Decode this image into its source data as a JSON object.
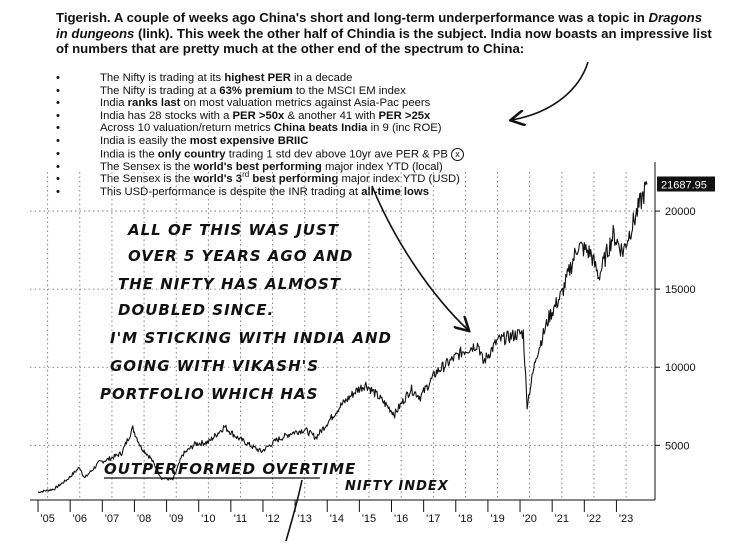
{
  "intro": {
    "p1": "Tigerish. A couple of weeks ago China's short and long-term underperformance was a topic in ",
    "em": "Dragons in dungeons",
    "p2": " (link). This week the other half of Chindia is the subject.  India now boasts an impressive list of numbers that are pretty much at the other end of the spectrum to China:"
  },
  "bullets": [
    {
      "a": "The Nifty is trading at its ",
      "b": "highest PER",
      "c": " in a decade"
    },
    {
      "a": "The Nifty is trading at a ",
      "b": "63% premium",
      "c": " to the MSCI EM index"
    },
    {
      "a": "India ",
      "b": "ranks last",
      "c": " on most valuation metrics against Asia-Pac peers"
    },
    {
      "a": "India has 28 stocks with a ",
      "b": "PER >50x",
      "c": " & another 41 with ",
      "d": "PER >25x"
    },
    {
      "a": "Across 10 valuation/return metrics ",
      "b": "China beats India",
      "c": " in 9 (inc ROE)"
    },
    {
      "a": "India is easily the ",
      "b": "most expensive BRIIC",
      "c": ""
    },
    {
      "a": "India is the ",
      "b": "only country",
      "c": " trading 1 std dev above 10yr ave PER & PB ",
      "mark": "x"
    },
    {
      "a": "The Sensex is the ",
      "b": "world's best performing",
      "c": " major index YTD (local)"
    },
    {
      "a": "The Sensex is the ",
      "b": "world's 3",
      "sup": "rd",
      "b2": " best performing",
      "c": " major index YTD (USD)"
    },
    {
      "a": "This USD-performance is despite the INR trading at ",
      "b": "all-time lows",
      "c": ""
    }
  ],
  "handwriting": {
    "lines": [
      "ALL OF THIS WAS JUST",
      "OVER 5 YEARS AGO AND",
      "THE NIFTY HAS ALMOST",
      "DOUBLED SINCE.",
      "I'M STICKING WITH INDIA AND",
      "GOING WITH VIKASH'S",
      "PORTFOLIO WHICH HAS",
      "OUTPERFORMED OVERTIME"
    ],
    "label": "NIFTY INDEX"
  },
  "chart_data": {
    "type": "line",
    "last_value_label": "21687.95",
    "x_ticks": [
      "'05",
      "'06",
      "'07",
      "'08",
      "'09",
      "'10",
      "'11",
      "'12",
      "'13",
      "'14",
      "'15",
      "'16",
      "'17",
      "'18",
      "'19",
      "'20",
      "'21",
      "'22",
      "'23"
    ],
    "y_ticks": [
      5000,
      10000,
      15000,
      20000
    ],
    "ylim": [
      1500,
      22500
    ],
    "xlim": [
      2004.75,
      2024.2
    ],
    "grid": true,
    "series": [
      {
        "x": [
          2005.0,
          2005.5,
          2005.9,
          2006.3,
          2006.45,
          2006.9,
          2007.3,
          2007.6,
          2007.95,
          2008.2,
          2008.5,
          2008.85,
          2009.2,
          2009.5,
          2009.9,
          2010.3,
          2010.8,
          2011.2,
          2011.6,
          2011.95,
          2012.4,
          2012.9,
          2013.3,
          2013.65,
          2013.95,
          2014.4,
          2014.9,
          2015.2,
          2015.6,
          2016.1,
          2016.6,
          2016.9,
          2017.4,
          2017.9,
          2018.2,
          2018.7,
          2018.85,
          2019.3,
          2019.9,
          2020.1,
          2020.22,
          2020.5,
          2020.9,
          2021.3,
          2021.8,
          2022.2,
          2022.45,
          2022.9,
          2023.2,
          2023.6,
          2023.95
        ],
        "y": [
          2000,
          2200,
          2800,
          3600,
          2900,
          3900,
          4200,
          4500,
          6100,
          4900,
          4200,
          2900,
          2800,
          4400,
          5100,
          5200,
          6200,
          5500,
          5000,
          4600,
          5300,
          5800,
          6000,
          5500,
          6300,
          7500,
          8500,
          8900,
          8100,
          7000,
          8600,
          8100,
          9700,
          10500,
          11000,
          11500,
          10300,
          11700,
          12100,
          12200,
          7600,
          10700,
          13200,
          14700,
          17800,
          17300,
          15800,
          18500,
          17400,
          19700,
          21700
        ]
      }
    ]
  }
}
